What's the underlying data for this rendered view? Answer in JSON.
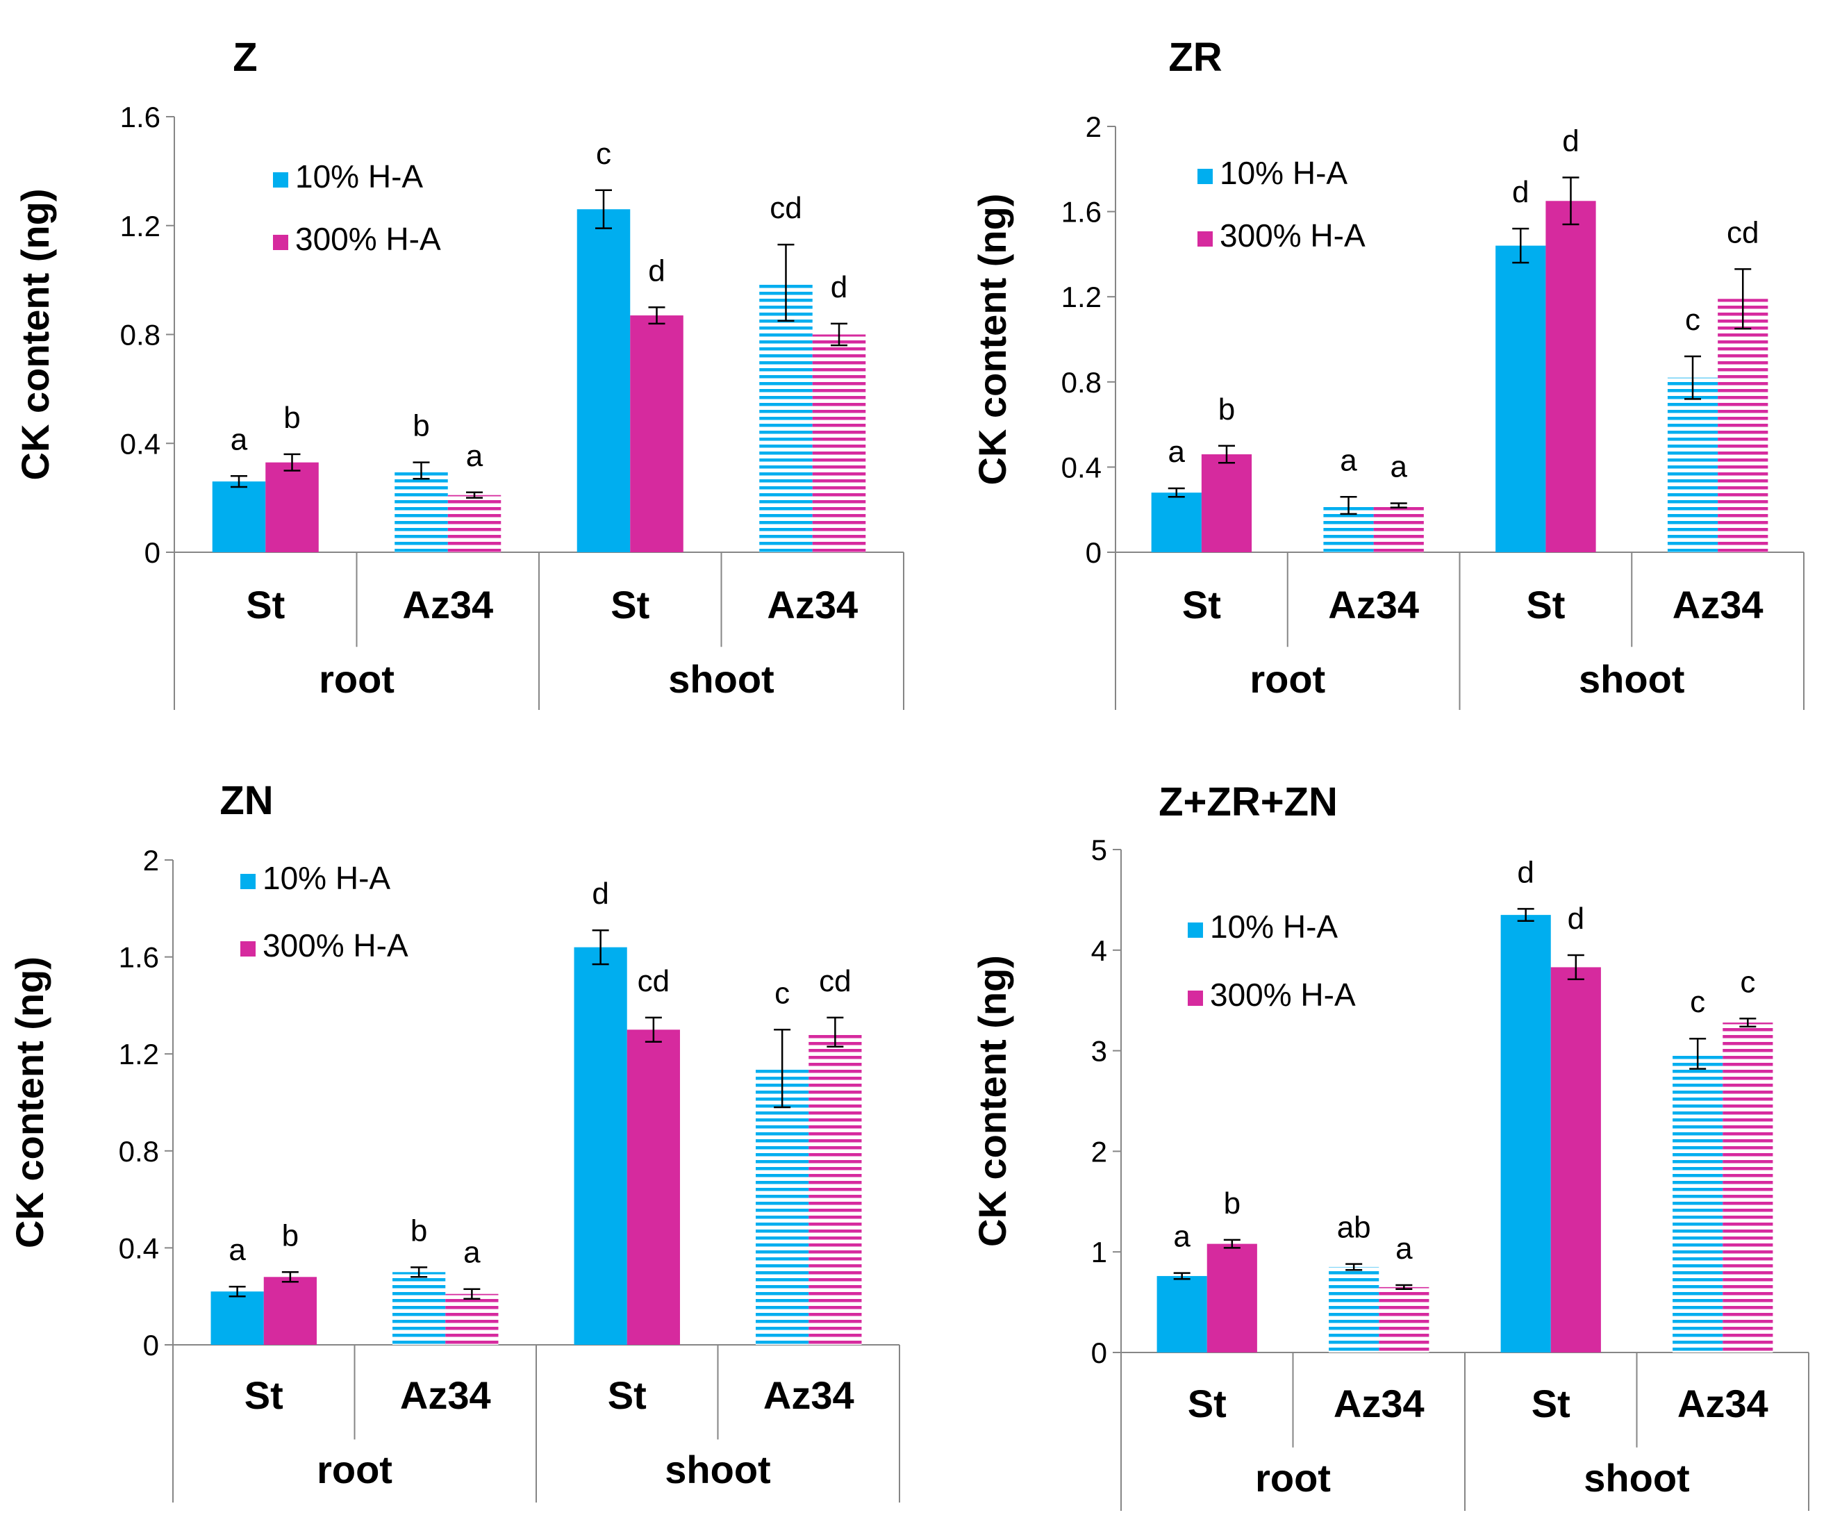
{
  "colors": {
    "blue": "#00AEEF",
    "magenta": "#D62A9E",
    "axis": "#868686",
    "text": "#000000"
  },
  "chart_data": [
    {
      "type": "bar",
      "title": "Z",
      "ylabel": "CK content (ng)",
      "ylim": [
        0,
        1.6
      ],
      "yticks": [
        "0",
        "0.4",
        "0.8",
        "1.2",
        "1.6"
      ],
      "categories": [
        "St",
        "Az34",
        "St",
        "Az34"
      ],
      "groups": [
        "root",
        "shoot"
      ],
      "series": [
        {
          "name": "10% H-A",
          "values": [
            0.26,
            0.3,
            1.26,
            0.99
          ],
          "errors": [
            0.02,
            0.03,
            0.07,
            0.14
          ],
          "labels": [
            "a",
            "b",
            "c",
            "cd"
          ]
        },
        {
          "name": "300% H-A",
          "values": [
            0.33,
            0.21,
            0.87,
            0.8
          ],
          "errors": [
            0.03,
            0.01,
            0.03,
            0.04
          ],
          "labels": [
            "b",
            "a",
            "d",
            "d"
          ]
        }
      ],
      "legend_position": "top-left"
    },
    {
      "type": "bar",
      "title": "ZR",
      "ylabel": "CK content (ng)",
      "ylim": [
        0,
        2
      ],
      "yticks": [
        "0",
        "0.4",
        "0.8",
        "1.2",
        "1.6",
        "2"
      ],
      "categories": [
        "St",
        "Az34",
        "St",
        "Az34"
      ],
      "groups": [
        "root",
        "shoot"
      ],
      "series": [
        {
          "name": "10% H-A",
          "values": [
            0.28,
            0.22,
            1.44,
            0.82
          ],
          "errors": [
            0.02,
            0.04,
            0.08,
            0.1
          ],
          "labels": [
            "a",
            "a",
            "d",
            "c"
          ]
        },
        {
          "name": "300% H-A",
          "values": [
            0.46,
            0.22,
            1.65,
            1.19
          ],
          "errors": [
            0.04,
            0.01,
            0.11,
            0.14
          ],
          "labels": [
            "b",
            "a",
            "d",
            "cd"
          ]
        }
      ],
      "legend_position": "top-left"
    },
    {
      "type": "bar",
      "title": "ZN",
      "ylabel": "CK content (ng)",
      "ylim": [
        0,
        2
      ],
      "yticks": [
        "0",
        "0.4",
        "0.8",
        "1.2",
        "1.6",
        "2"
      ],
      "categories": [
        "St",
        "Az34",
        "St",
        "Az34"
      ],
      "groups": [
        "root",
        "shoot"
      ],
      "series": [
        {
          "name": "10% H-A",
          "values": [
            0.22,
            0.3,
            1.64,
            1.14
          ],
          "errors": [
            0.02,
            0.02,
            0.07,
            0.16
          ],
          "labels": [
            "a",
            "b",
            "d",
            "c"
          ]
        },
        {
          "name": "300% H-A",
          "values": [
            0.28,
            0.21,
            1.3,
            1.29
          ],
          "errors": [
            0.02,
            0.02,
            0.05,
            0.06
          ],
          "labels": [
            "b",
            "a",
            "cd",
            "cd"
          ]
        }
      ],
      "legend_position": "top-left"
    },
    {
      "type": "bar",
      "title": "Z+ZR+ZN",
      "ylabel": "CK content (ng)",
      "ylim": [
        0,
        5
      ],
      "yticks": [
        "0",
        "1",
        "2",
        "3",
        "4",
        "5"
      ],
      "categories": [
        "St",
        "Az34",
        "St",
        "Az34"
      ],
      "groups": [
        "root",
        "shoot"
      ],
      "series": [
        {
          "name": "10% H-A",
          "values": [
            0.76,
            0.85,
            4.35,
            2.97
          ],
          "errors": [
            0.03,
            0.03,
            0.06,
            0.15
          ],
          "labels": [
            "a",
            "ab",
            "d",
            "c"
          ]
        },
        {
          "name": "300% H-A",
          "values": [
            1.08,
            0.65,
            3.83,
            3.28
          ],
          "errors": [
            0.04,
            0.02,
            0.12,
            0.04
          ],
          "labels": [
            "b",
            "a",
            "d",
            "c"
          ]
        }
      ],
      "legend_position": "top-left"
    }
  ]
}
